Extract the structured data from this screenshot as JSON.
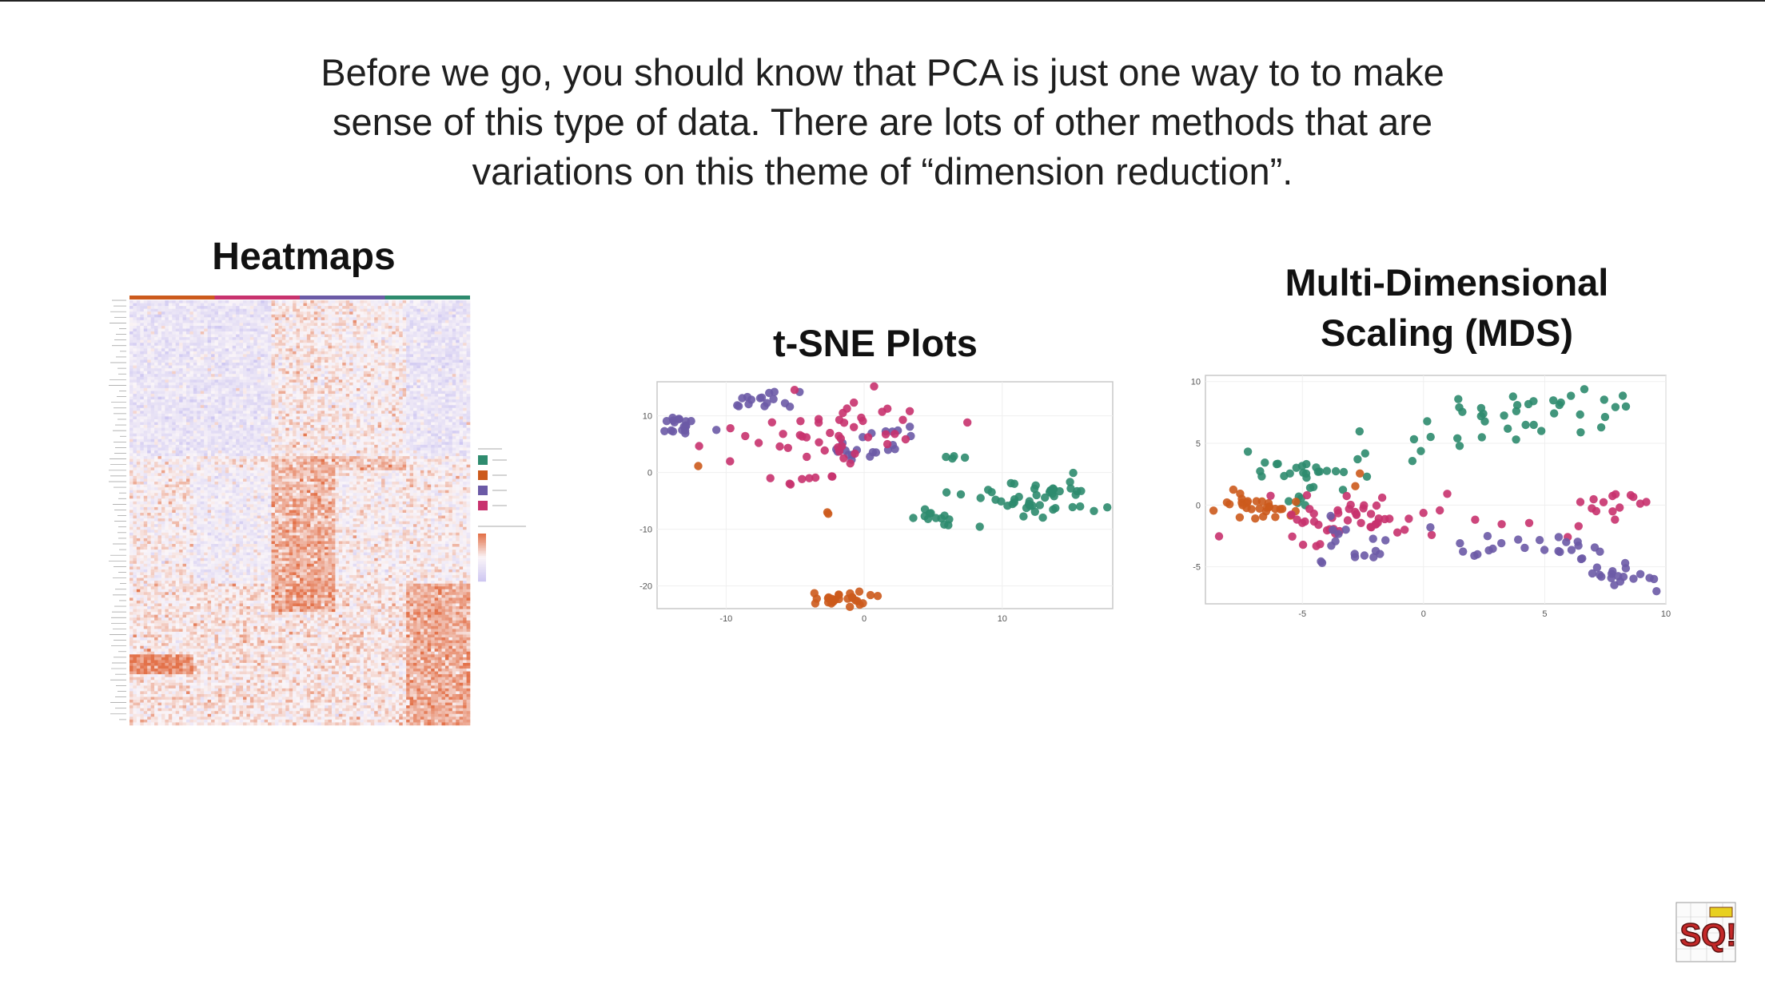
{
  "intro": {
    "line1": "Before we go, you should know that PCA is just one way to to make",
    "line2": "sense of this type of data. There are lots of other methods that are",
    "line3": "variations on this theme of “dimension reduction”."
  },
  "sections": {
    "heatmap_title": "Heatmaps",
    "tsne_title": "t-SNE Plots",
    "mds_title_line1": "Multi-Dimensional",
    "mds_title_line2": "Scaling (MDS)"
  },
  "colors": {
    "green": "#2e8b6e",
    "orange": "#cc5a1c",
    "purple": "#6b5aa6",
    "magenta": "#c8326e",
    "heat_low": "#cfc8f2",
    "heat_high": "#e3724a"
  },
  "logo_text": "SQ!",
  "chart_data": [
    {
      "type": "heatmap",
      "title": "Heatmaps"
    },
    {
      "type": "scatter",
      "title": "t-SNE Plots",
      "xlim": [
        -15,
        18
      ],
      "ylim": [
        -24,
        16
      ],
      "x_ticks": [
        -10,
        0,
        10
      ],
      "y_ticks": [
        10,
        0,
        -10,
        -20
      ],
      "x_tick_labels": [
        "-10",
        "0",
        "10"
      ],
      "y_tick_labels": [
        "10",
        "0",
        "-10",
        "-20"
      ],
      "series": [
        {
          "color": "purple",
          "clusters": [
            {
              "cx": -13,
              "cy": 8,
              "sx": 1.0,
              "sy": 1.3,
              "n": 18
            },
            {
              "cx": -7,
              "cy": 13,
              "sx": 1.6,
              "sy": 1.0,
              "n": 16
            },
            {
              "cx": 0,
              "cy": 4,
              "sx": 1.2,
              "sy": 1.2,
              "n": 16
            },
            {
              "cx": 2,
              "cy": 7,
              "sx": 1.0,
              "sy": 0.8,
              "n": 6
            }
          ]
        },
        {
          "color": "magenta",
          "clusters": [
            {
              "cx": -4,
              "cy": 6,
              "sx": 3.0,
              "sy": 3.5,
              "n": 40
            },
            {
              "cx": -4,
              "cy": -1,
              "sx": 1.0,
              "sy": 0.8,
              "n": 8
            },
            {
              "cx": 1,
              "cy": 10,
              "sx": 2.0,
              "sy": 1.5,
              "n": 8
            }
          ]
        },
        {
          "color": "green",
          "clusters": [
            {
              "cx": 12.5,
              "cy": -5,
              "sx": 2.6,
              "sy": 1.7,
              "n": 48
            },
            {
              "cx": 5,
              "cy": -8,
              "sx": 0.8,
              "sy": 0.6,
              "n": 12
            },
            {
              "cx": 6,
              "cy": 3,
              "sx": 0.8,
              "sy": 0.3,
              "n": 4
            }
          ]
        },
        {
          "color": "orange",
          "clusters": [
            {
              "cx": -1.2,
              "cy": -22,
              "sx": 1.3,
              "sy": 0.6,
              "n": 26
            },
            {
              "cx": -2.5,
              "cy": -7,
              "sx": 0.2,
              "sy": 0.4,
              "n": 2
            },
            {
              "cx": -12,
              "cy": 1,
              "sx": 0.1,
              "sy": 0.1,
              "n": 1
            }
          ]
        }
      ]
    },
    {
      "type": "scatter",
      "title": "Multi-Dimensional Scaling (MDS)",
      "xlim": [
        -9,
        10
      ],
      "ylim": [
        -8,
        10.5
      ],
      "x_ticks": [
        -5,
        0,
        5,
        10
      ],
      "y_ticks": [
        10,
        5,
        0,
        -5
      ],
      "x_tick_labels": [
        "-5",
        "0",
        "5",
        "10"
      ],
      "y_tick_labels": [
        "10",
        "5",
        "0",
        "-5"
      ],
      "series": [
        {
          "color": "green",
          "clusters": [
            {
              "cx": -5,
              "cy": 2.5,
              "sx": 1.3,
              "sy": 1.2,
              "n": 30
            },
            {
              "cx": 5,
              "cy": 7.5,
              "sx": 2.2,
              "sy": 1.2,
              "n": 30
            },
            {
              "cx": 1,
              "cy": 5.5,
              "sx": 1.8,
              "sy": 1.0,
              "n": 12
            }
          ]
        },
        {
          "color": "orange",
          "clusters": [
            {
              "cx": -7,
              "cy": 0,
              "sx": 1.0,
              "sy": 0.5,
              "n": 30
            },
            {
              "cx": -3,
              "cy": 2,
              "sx": 0.3,
              "sy": 0.3,
              "n": 2
            }
          ]
        },
        {
          "color": "magenta",
          "clusters": [
            {
              "cx": -3,
              "cy": -1,
              "sx": 1.6,
              "sy": 0.9,
              "n": 48
            },
            {
              "cx": 7.5,
              "cy": 0,
              "sx": 0.8,
              "sy": 0.6,
              "n": 14
            },
            {
              "cx": 2,
              "cy": -1.3,
              "sx": 2.0,
              "sy": 1.0,
              "n": 8
            }
          ]
        },
        {
          "color": "purple",
          "clusters": [
            {
              "cx": -3,
              "cy": -3.2,
              "sx": 1.4,
              "sy": 1.0,
              "n": 18
            },
            {
              "cx": 4.5,
              "cy": -3.5,
              "sx": 1.5,
              "sy": 0.6,
              "n": 22
            },
            {
              "cx": 7.8,
              "cy": -6,
              "sx": 1.0,
              "sy": 0.7,
              "n": 18
            }
          ]
        }
      ]
    }
  ]
}
